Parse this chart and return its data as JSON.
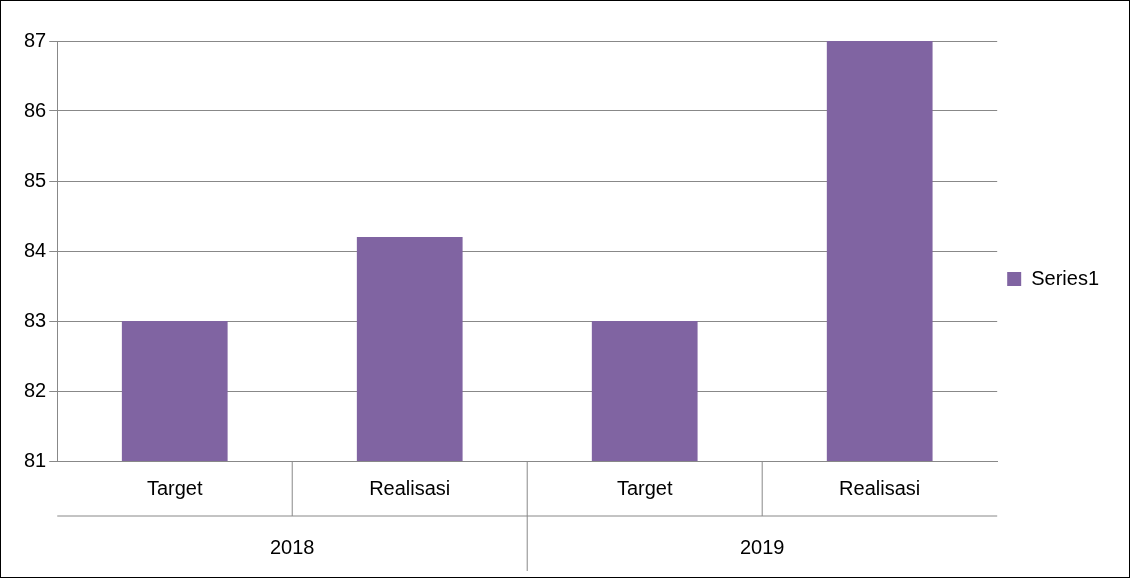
{
  "chart_data": {
    "type": "bar",
    "categories": [
      "Target",
      "Realisasi",
      "Target",
      "Realisasi"
    ],
    "series": [
      {
        "name": "Series1",
        "color": "#8064a2",
        "values": [
          83,
          84.2,
          83,
          87
        ]
      }
    ],
    "ylim": [
      81,
      87
    ],
    "yticks": [
      81,
      82,
      83,
      84,
      85,
      86,
      87
    ],
    "grid": "y",
    "legend": "right",
    "annotations": [
      "2018",
      "2019"
    ]
  }
}
